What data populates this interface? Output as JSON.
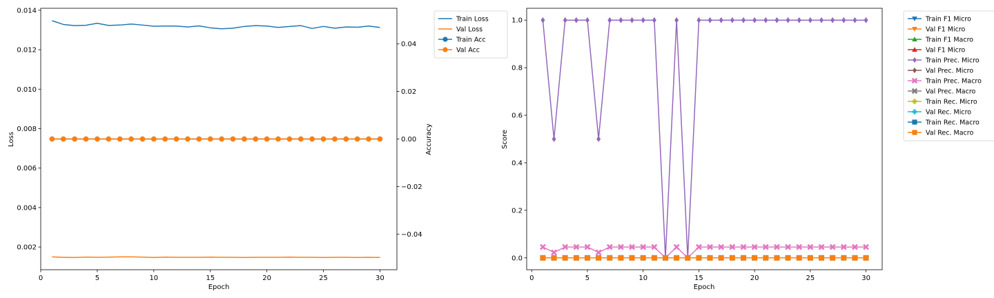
{
  "colors": {
    "blue": "#1f77b4",
    "orange": "#ff7f0e",
    "green": "#2ca02c",
    "red": "#d62728",
    "purple": "#9467bd",
    "brown": "#8c564b",
    "pink": "#e377c2",
    "gray": "#7f7f7f",
    "olive": "#bcbd22",
    "cyan": "#17becf"
  },
  "chart_data": [
    {
      "type": "line",
      "xlabel": "Epoch",
      "ylabel": "Loss",
      "y2label": "Accuracy",
      "xlim": [
        0,
        31.5
      ],
      "ylim": [
        0.00085,
        0.0141
      ],
      "y2lim": [
        -0.055,
        0.055
      ],
      "xticks": [
        0,
        5,
        10,
        15,
        20,
        25,
        30
      ],
      "yticks": [
        0.002,
        0.004,
        0.006,
        0.008,
        0.01,
        0.012,
        0.014
      ],
      "ytick_labels": [
        "0.002",
        "0.004",
        "0.006",
        "0.008",
        "0.010",
        "0.012",
        "0.014"
      ],
      "y2ticks": [
        -0.04,
        -0.02,
        0.0,
        0.02,
        0.04
      ],
      "y2tick_labels": [
        "−0.04",
        "−0.02",
        "0.00",
        "0.02",
        "0.04"
      ],
      "grid": false,
      "legend_placement": "outside-right",
      "x": [
        1,
        2,
        3,
        4,
        5,
        6,
        7,
        8,
        9,
        10,
        11,
        12,
        13,
        14,
        15,
        16,
        17,
        18,
        19,
        20,
        21,
        22,
        23,
        24,
        25,
        26,
        27,
        28,
        29,
        30
      ],
      "series": [
        {
          "name": "Train Loss",
          "axis": "left",
          "color": "blue",
          "marker": "none",
          "values": [
            0.01347,
            0.01328,
            0.01322,
            0.01324,
            0.01334,
            0.01323,
            0.01325,
            0.0133,
            0.01325,
            0.01319,
            0.0132,
            0.0132,
            0.01315,
            0.01321,
            0.01311,
            0.01306,
            0.01309,
            0.01318,
            0.01322,
            0.0132,
            0.01313,
            0.01318,
            0.01322,
            0.01308,
            0.01318,
            0.01309,
            0.01315,
            0.01314,
            0.0132,
            0.01313
          ]
        },
        {
          "name": "Val Loss",
          "axis": "left",
          "color": "orange",
          "marker": "none",
          "values": [
            0.0015,
            0.00148,
            0.00147,
            0.00149,
            0.00148,
            0.00149,
            0.0015,
            0.0015,
            0.00149,
            0.00147,
            0.00149,
            0.00148,
            0.00148,
            0.00148,
            0.00149,
            0.00148,
            0.00148,
            0.00147,
            0.00148,
            0.00148,
            0.00148,
            0.00149,
            0.00148,
            0.00148,
            0.00147,
            0.00148,
            0.00148,
            0.00147,
            0.00148,
            0.00147
          ]
        },
        {
          "name": "Train Acc",
          "axis": "right",
          "color": "blue",
          "marker": "circle",
          "values": [
            0,
            0,
            0,
            0,
            0,
            0,
            0,
            0,
            0,
            0,
            0,
            0,
            0,
            0,
            0,
            0,
            0,
            0,
            0,
            0,
            0,
            0,
            0,
            0,
            0,
            0,
            0,
            0,
            0,
            0
          ]
        },
        {
          "name": "Val Acc",
          "axis": "right",
          "color": "orange",
          "marker": "circle",
          "values": [
            0,
            0,
            0,
            0,
            0,
            0,
            0,
            0,
            0,
            0,
            0,
            0,
            0,
            0,
            0,
            0,
            0,
            0,
            0,
            0,
            0,
            0,
            0,
            0,
            0,
            0,
            0,
            0,
            0,
            0
          ]
        }
      ]
    },
    {
      "type": "line",
      "xlabel": "Epoch",
      "ylabel": "Score",
      "xlim": [
        -0.45,
        31.45
      ],
      "ylim": [
        -0.05,
        1.05
      ],
      "xticks": [
        0,
        5,
        10,
        15,
        20,
        25,
        30
      ],
      "yticks": [
        0.0,
        0.2,
        0.4,
        0.6,
        0.8,
        1.0
      ],
      "ytick_labels": [
        "0.0",
        "0.2",
        "0.4",
        "0.6",
        "0.8",
        "1.0"
      ],
      "grid": false,
      "legend_placement": "outside-right",
      "x": [
        1,
        2,
        3,
        4,
        5,
        6,
        7,
        8,
        9,
        10,
        11,
        12,
        13,
        14,
        15,
        16,
        17,
        18,
        19,
        20,
        21,
        22,
        23,
        24,
        25,
        26,
        27,
        28,
        29,
        30
      ],
      "series": [
        {
          "name": "Train F1 Micro",
          "color": "blue",
          "marker": "triangle-down",
          "values": [
            0,
            0,
            0,
            0,
            0,
            0,
            0,
            0,
            0,
            0,
            0,
            0,
            0,
            0,
            0,
            0,
            0,
            0,
            0,
            0,
            0,
            0,
            0,
            0,
            0,
            0,
            0,
            0,
            0,
            0
          ]
        },
        {
          "name": "Val F1 Micro",
          "color": "orange",
          "marker": "triangle-down",
          "values": [
            0,
            0,
            0,
            0,
            0,
            0,
            0,
            0,
            0,
            0,
            0,
            0,
            0,
            0,
            0,
            0,
            0,
            0,
            0,
            0,
            0,
            0,
            0,
            0,
            0,
            0,
            0,
            0,
            0,
            0
          ]
        },
        {
          "name": "Train F1 Macro",
          "color": "green",
          "marker": "triangle-up",
          "values": [
            0,
            0,
            0,
            0,
            0,
            0,
            0,
            0,
            0,
            0,
            0,
            0,
            0,
            0,
            0,
            0,
            0,
            0,
            0,
            0,
            0,
            0,
            0,
            0,
            0,
            0,
            0,
            0,
            0,
            0
          ]
        },
        {
          "name": "Val F1 Micro",
          "color": "red",
          "marker": "triangle-up",
          "values": [
            0,
            0,
            0,
            0,
            0,
            0,
            0,
            0,
            0,
            0,
            0,
            0,
            0,
            0,
            0,
            0,
            0,
            0,
            0,
            0,
            0,
            0,
            0,
            0,
            0,
            0,
            0,
            0,
            0,
            0
          ]
        },
        {
          "name": "Train Prec. Micro",
          "color": "purple",
          "marker": "diamond",
          "values": [
            1,
            0.5,
            1,
            1,
            1,
            0.5,
            1,
            1,
            1,
            1,
            1,
            0,
            1,
            0,
            1,
            1,
            1,
            1,
            1,
            1,
            1,
            1,
            1,
            1,
            1,
            1,
            1,
            1,
            1,
            1
          ]
        },
        {
          "name": "Val Prec. Micro",
          "color": "brown",
          "marker": "diamond",
          "values": [
            0,
            0,
            0,
            0,
            0,
            0,
            0,
            0,
            0,
            0,
            0,
            0,
            0,
            0,
            0,
            0,
            0,
            0,
            0,
            0,
            0,
            0,
            0,
            0,
            0,
            0,
            0,
            0,
            0,
            0
          ]
        },
        {
          "name": "Train Prec. Macro",
          "color": "pink",
          "marker": "x-filled",
          "values": [
            0.0455,
            0.0227,
            0.0455,
            0.0455,
            0.0455,
            0.0227,
            0.0455,
            0.0455,
            0.0455,
            0.0455,
            0.0455,
            0,
            0.0455,
            0,
            0.0455,
            0.0455,
            0.0455,
            0.0455,
            0.0455,
            0.0455,
            0.0455,
            0.0455,
            0.0455,
            0.0455,
            0.0455,
            0.0455,
            0.0455,
            0.0455,
            0.0455,
            0.0455
          ]
        },
        {
          "name": "Val Prec. Macro",
          "color": "gray",
          "marker": "x-filled",
          "values": [
            0,
            0,
            0,
            0,
            0,
            0,
            0,
            0,
            0,
            0,
            0,
            0,
            0,
            0,
            0,
            0,
            0,
            0,
            0,
            0,
            0,
            0,
            0,
            0,
            0,
            0,
            0,
            0,
            0,
            0
          ]
        },
        {
          "name": "Train Rec. Micro",
          "color": "olive",
          "marker": "plus",
          "values": [
            0,
            0,
            0,
            0,
            0,
            0,
            0,
            0,
            0,
            0,
            0,
            0,
            0,
            0,
            0,
            0,
            0,
            0,
            0,
            0,
            0,
            0,
            0,
            0,
            0,
            0,
            0,
            0,
            0,
            0
          ]
        },
        {
          "name": "Val Rec. Micro",
          "color": "cyan",
          "marker": "plus",
          "values": [
            0,
            0,
            0,
            0,
            0,
            0,
            0,
            0,
            0,
            0,
            0,
            0,
            0,
            0,
            0,
            0,
            0,
            0,
            0,
            0,
            0,
            0,
            0,
            0,
            0,
            0,
            0,
            0,
            0,
            0
          ]
        },
        {
          "name": "Train Rec. Macro",
          "color": "blue",
          "marker": "square",
          "values": [
            0,
            0,
            0,
            0,
            0,
            0,
            0,
            0,
            0,
            0,
            0,
            0,
            0,
            0,
            0,
            0,
            0,
            0,
            0,
            0,
            0,
            0,
            0,
            0,
            0,
            0,
            0,
            0,
            0,
            0
          ]
        },
        {
          "name": "Val Rec. Macro",
          "color": "orange",
          "marker": "square",
          "values": [
            0,
            0,
            0,
            0,
            0,
            0,
            0,
            0,
            0,
            0,
            0,
            0,
            0,
            0,
            0,
            0,
            0,
            0,
            0,
            0,
            0,
            0,
            0,
            0,
            0,
            0,
            0,
            0,
            0,
            0
          ]
        }
      ]
    }
  ]
}
